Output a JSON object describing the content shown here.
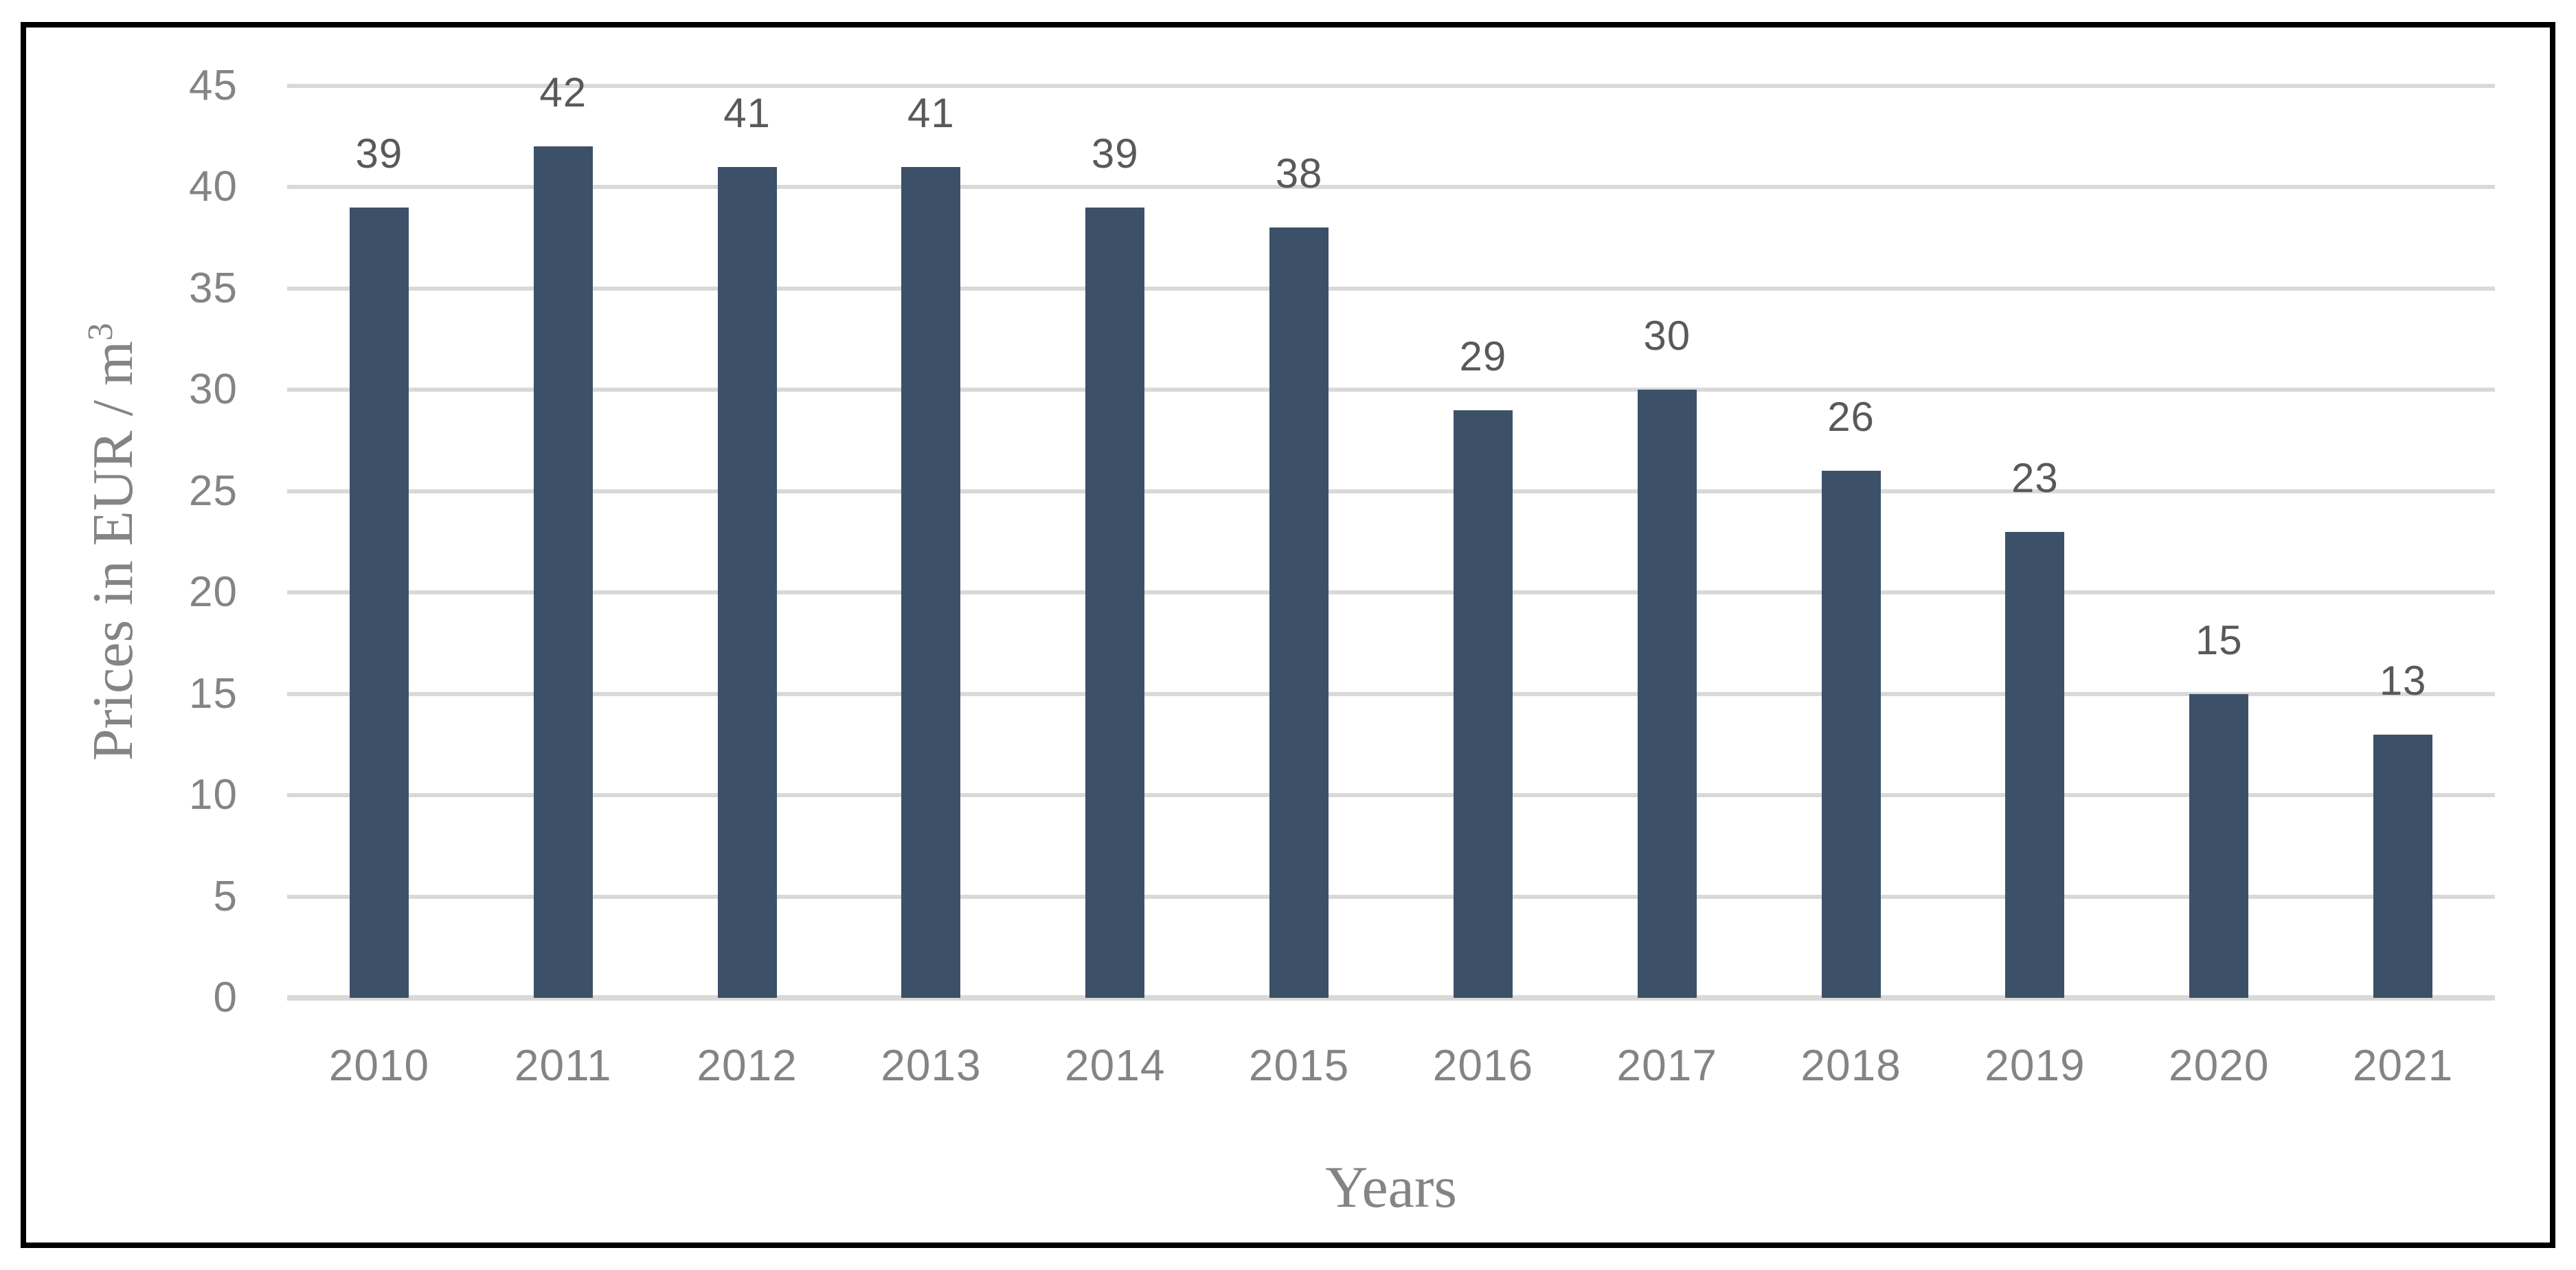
{
  "figure": {
    "background": "#ffffff",
    "frame_border_color": "#000000"
  },
  "chart_data": {
    "type": "bar",
    "title": "",
    "categories": [
      "2010",
      "2011",
      "2012",
      "2013",
      "2014",
      "2015",
      "2016",
      "2017",
      "2018",
      "2019",
      "2020",
      "2021"
    ],
    "values": [
      39,
      42,
      41,
      41,
      39,
      38,
      29,
      30,
      26,
      23,
      15,
      13
    ],
    "data_labels": [
      "39",
      "42",
      "41",
      "41",
      "39",
      "38",
      "29",
      "30",
      "26",
      "23",
      "15",
      "13"
    ],
    "xlabel": "Years",
    "ylabel": "Prices in EUR / m³",
    "ylabel_base": "Prices in EUR / m",
    "ylabel_superscript": "3",
    "ylim": [
      0,
      45
    ],
    "ytick_step": 5,
    "yticks": [
      "0",
      "5",
      "10",
      "15",
      "20",
      "25",
      "30",
      "35",
      "40",
      "45"
    ],
    "grid": "horizontal gridlines on",
    "legend": "none",
    "colors": {
      "bar": "#3C5168",
      "gridline": "#D9D9D9",
      "baseline": "#D9D9D9",
      "tick_label": "#848484",
      "axis_title": "#848484",
      "data_label": "#595959"
    }
  }
}
